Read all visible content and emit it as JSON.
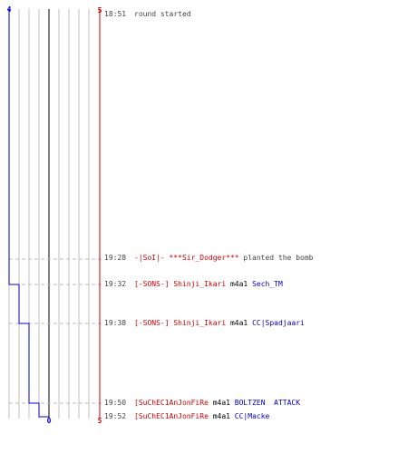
{
  "scoreboard": {
    "top_left": "4",
    "top_right": "5",
    "bottom_left": "0",
    "bottom_right": "5"
  },
  "colors": {
    "team_blue": "#0000cc",
    "team_red": "#cc0000",
    "neutral": "#444444",
    "grid": "#c0c0c0",
    "dashed": "#bbbbbb"
  },
  "events": [
    {
      "time": "18:51",
      "kind": "round_start",
      "segments": [
        {
          "text": "round started",
          "color": "#444444"
        }
      ]
    },
    {
      "time": "19:28",
      "kind": "bomb_plant",
      "segments": [
        {
          "text": "-|SoI|- ***Sir_Dodger***",
          "color": "#cc0000"
        },
        {
          "text": " planted the bomb",
          "color": "#444444"
        }
      ]
    },
    {
      "time": "19:32",
      "kind": "kill",
      "segments": [
        {
          "text": "[-SONS-] Shinji_Ikari",
          "color": "#cc0000"
        },
        {
          "text": " m4a1 ",
          "color": "#000000"
        },
        {
          "text": "Sech_TM",
          "color": "#0000cc"
        }
      ]
    },
    {
      "time": "19:38",
      "kind": "kill",
      "segments": [
        {
          "text": "[-SONS-] Shinji_Ikari",
          "color": "#cc0000"
        },
        {
          "text": " m4a1 ",
          "color": "#000000"
        },
        {
          "text": "CC|Spadjaari",
          "color": "#0000cc"
        }
      ]
    },
    {
      "time": "19:50",
      "kind": "kill",
      "segments": [
        {
          "text": "[SuChEC1AnJonFiRe",
          "color": "#cc0000"
        },
        {
          "text": " m4a1 ",
          "color": "#000000"
        },
        {
          "text": "BOLTZEN  ATTACK",
          "color": "#0000cc"
        }
      ]
    },
    {
      "time": "19:52",
      "kind": "kill",
      "segments": [
        {
          "text": "[SuChEC1AnJonFiRe",
          "color": "#cc0000"
        },
        {
          "text": " m4a1 ",
          "color": "#000000"
        },
        {
          "text": "CC|Macke",
          "color": "#0000cc"
        }
      ]
    }
  ],
  "blue_alive_steps": [
    4,
    4,
    3,
    2,
    1,
    0
  ]
}
